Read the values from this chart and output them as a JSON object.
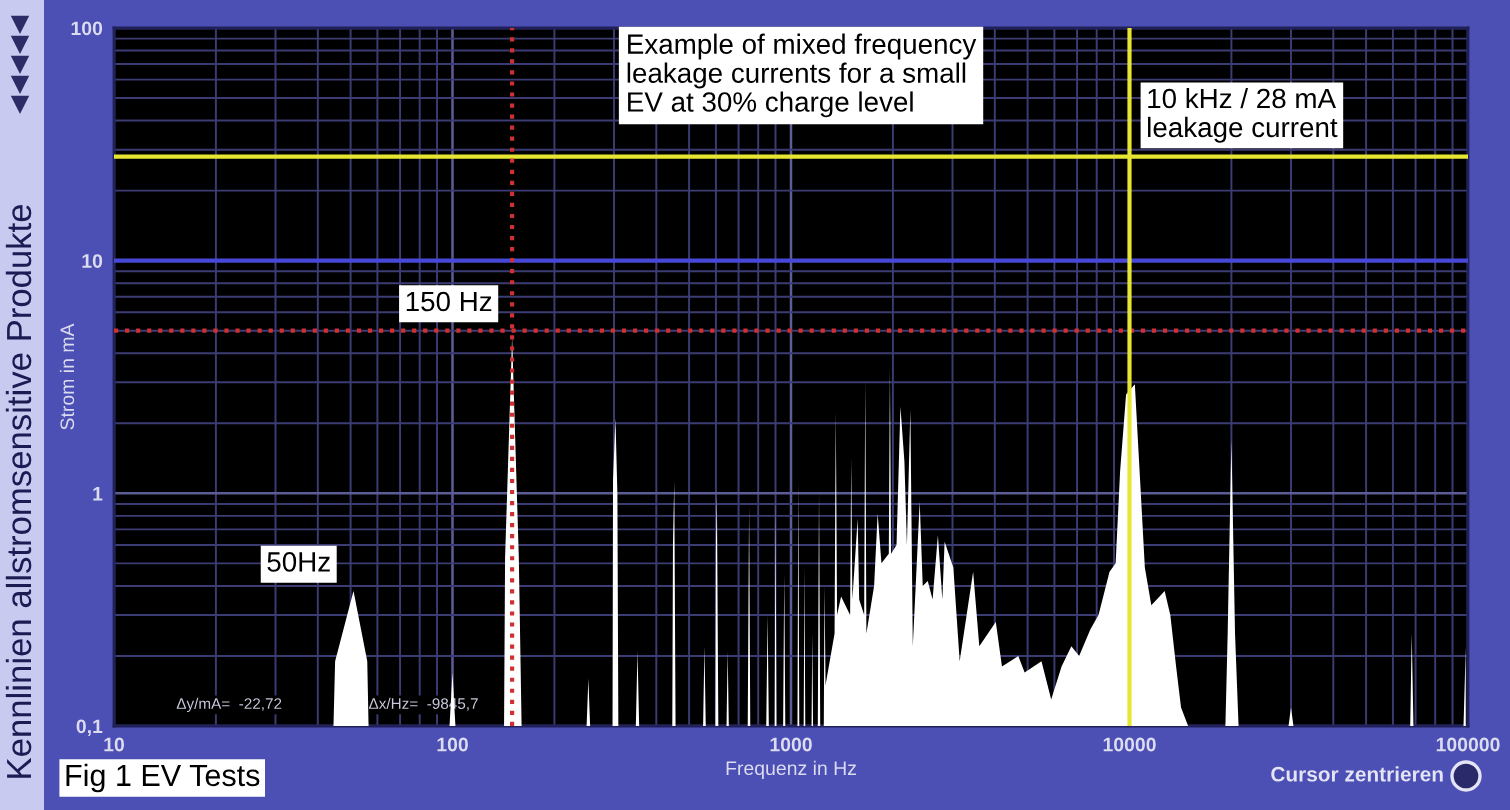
{
  "chart_data": {
    "type": "area",
    "title": "Example of mixed frequency\nleakage currents for a small\nEV at 30% charge level",
    "xlabel": "Frequenz in Hz",
    "ylabel": "Strom in mA",
    "log": "xy",
    "xlim": [
      10,
      100000
    ],
    "ylim": [
      0.1,
      100
    ],
    "xticks": [
      10,
      {
        "value": 20,
        "label": null
      },
      {
        "value": 30,
        "label": null
      },
      {
        "value": 40,
        "label": null
      },
      {
        "value": 50,
        "label": null
      },
      {
        "value": 60,
        "label": null
      },
      {
        "value": 70,
        "label": null
      },
      {
        "value": 80,
        "label": null
      },
      {
        "value": 90,
        "label": null
      },
      100,
      {
        "value": 200,
        "label": null
      },
      {
        "value": 300,
        "label": null
      },
      {
        "value": 400,
        "label": null
      },
      {
        "value": 500,
        "label": null
      },
      {
        "value": 600,
        "label": null
      },
      {
        "value": 700,
        "label": null
      },
      {
        "value": 800,
        "label": null
      },
      {
        "value": 900,
        "label": null
      },
      1000,
      {
        "value": 2000,
        "label": null
      },
      {
        "value": 3000,
        "label": null
      },
      {
        "value": 4000,
        "label": null
      },
      {
        "value": 5000,
        "label": null
      },
      {
        "value": 6000,
        "label": null
      },
      {
        "value": 7000,
        "label": null
      },
      {
        "value": 8000,
        "label": null
      },
      {
        "value": 9000,
        "label": null
      },
      10000,
      {
        "value": 20000,
        "label": null
      },
      {
        "value": 30000,
        "label": null
      },
      {
        "value": 40000,
        "label": null
      },
      {
        "value": 50000,
        "label": null
      },
      {
        "value": 60000,
        "label": null
      },
      {
        "value": 70000,
        "label": null
      },
      {
        "value": 80000,
        "label": null
      },
      {
        "value": 90000,
        "label": null
      },
      100000
    ],
    "yticks": [
      {
        "value": 0.1,
        "label": "0,1"
      },
      {
        "value": 0.2,
        "label": null
      },
      {
        "value": 0.3,
        "label": null
      },
      {
        "value": 0.4,
        "label": null
      },
      {
        "value": 0.5,
        "label": null
      },
      {
        "value": 0.6,
        "label": null
      },
      {
        "value": 0.7,
        "label": null
      },
      {
        "value": 0.8,
        "label": null
      },
      {
        "value": 0.9,
        "label": null
      },
      1,
      {
        "value": 2,
        "label": null
      },
      {
        "value": 3,
        "label": null
      },
      {
        "value": 4,
        "label": null
      },
      {
        "value": 5,
        "label": null
      },
      {
        "value": 6,
        "label": null
      },
      {
        "value": 7,
        "label": null
      },
      {
        "value": 8,
        "label": null
      },
      {
        "value": 9,
        "label": null
      },
      10,
      {
        "value": 20,
        "label": null
      },
      {
        "value": 30,
        "label": null
      },
      {
        "value": 40,
        "label": null
      },
      {
        "value": 50,
        "label": null
      },
      {
        "value": 60,
        "label": null
      },
      {
        "value": 70,
        "label": null
      },
      {
        "value": 80,
        "label": null
      },
      {
        "value": 90,
        "label": null
      },
      100
    ],
    "grid": true,
    "series": [
      {
        "color": "#ffffff",
        "x": [
          40,
          44.5,
          45,
          51,
          56,
          56.5,
          98,
          100,
          102,
          142,
          143,
          150,
          157,
          160,
          249,
          252,
          255,
          297,
          298,
          303,
          307,
          309,
          348,
          352,
          356,
          446,
          448,
          452,
          456,
          550,
          555,
          560,
          598,
          600,
          604,
          610,
          645,
          650,
          655,
          745,
          752,
          758,
          845,
          853,
          860,
          895,
          900,
          906,
          948,
          955,
          962,
          1045,
          1051,
          1058,
          1090,
          1096,
          1102,
          1150,
          1156,
          1162,
          1200,
          1210,
          1220,
          1250,
          1256,
          1265,
          1345,
          1356,
          1368,
          1406,
          1495,
          1506,
          1518,
          1574,
          1590,
          1645,
          1657,
          1670,
          1760,
          1803,
          1850,
          1945,
          1960,
          1975,
          2050,
          2105,
          2163,
          2200,
          2252,
          2290,
          2400,
          2450,
          2535,
          2620,
          2716,
          2800,
          2843,
          3017,
          3150,
          3452,
          3600,
          4027,
          4200,
          4693,
          4900,
          5495,
          5870,
          6300,
          6734,
          7100,
          7660,
          8100,
          8730,
          9100,
          9380,
          9770,
          10370,
          10740,
          11100,
          11600,
          12270,
          12700,
          13200,
          13730,
          14200,
          14900,
          19200,
          19500,
          20000,
          20500,
          21000,
          29500,
          30000,
          30500,
          67500,
          68200,
          69000,
          97000,
          98500
        ],
        "values": [
          0.1,
          0.1,
          0.19,
          0.38,
          0.19,
          0.1,
          0.1,
          0.17,
          0.1,
          0.1,
          0.53,
          4.7,
          0.53,
          0.1,
          0.1,
          0.16,
          0.1,
          0.1,
          1.13,
          2.1,
          0.99,
          0.1,
          0.1,
          0.21,
          0.1,
          0.1,
          0.6,
          1.13,
          0.1,
          0.1,
          0.22,
          0.1,
          0.1,
          0.6,
          1.0,
          0.1,
          0.1,
          0.21,
          0.1,
          0.1,
          0.89,
          0.1,
          0.1,
          0.3,
          0.1,
          0.1,
          0.99,
          0.1,
          0.1,
          0.45,
          0.1,
          0.1,
          1.13,
          0.1,
          0.1,
          0.48,
          0.1,
          0.1,
          0.25,
          0.1,
          0.1,
          1.03,
          0.1,
          0.1,
          0.4,
          0.15,
          0.25,
          2.25,
          0.3,
          0.36,
          0.3,
          1.42,
          0.35,
          0.78,
          0.35,
          0.3,
          3.08,
          0.25,
          0.4,
          0.82,
          0.5,
          0.55,
          3.42,
          0.55,
          0.6,
          2.36,
          1.37,
          0.6,
          2.29,
          0.22,
          0.92,
          0.4,
          0.42,
          0.35,
          0.66,
          0.35,
          0.62,
          0.48,
          0.19,
          0.46,
          0.22,
          0.28,
          0.18,
          0.2,
          0.17,
          0.19,
          0.13,
          0.18,
          0.22,
          0.2,
          0.26,
          0.3,
          0.46,
          0.5,
          1.24,
          2.66,
          2.94,
          1.16,
          0.48,
          0.33,
          0.36,
          0.38,
          0.3,
          0.18,
          0.12,
          0.1,
          0.1,
          0.25,
          1.7,
          0.25,
          0.1,
          0.1,
          0.12,
          0.1,
          0.1,
          0.25,
          0.1,
          0.1,
          0.22
        ]
      }
    ],
    "ref_lines": [
      {
        "axis": "y",
        "value": 28,
        "color": "#e6e632"
      },
      {
        "axis": "y",
        "value": 10,
        "color": "#4848d8"
      },
      {
        "axis": "y",
        "value": 5,
        "color": "#d03030",
        "line_style": "dotted"
      },
      {
        "axis": "x",
        "value": 150,
        "color": "#d03030",
        "line_style": "dotted"
      },
      {
        "axis": "x",
        "value": 10000,
        "color": "#e6e632"
      }
    ],
    "annotations": [
      {
        "text": "10 kHz / 28 mA\nleakage current",
        "x": 10000,
        "y": 28
      },
      {
        "text": "150 Hz",
        "x": 150,
        "y": 5
      },
      {
        "text": "50Hz",
        "x": 50,
        "y": 0.38
      },
      "Δy/mA=  -22,72",
      "Δx/Hz=  -9845,7",
      "Fig 1 EV Tests",
      "Cursor zentrieren",
      "Kennlinien allstromsensitive Produkte"
    ]
  }
}
